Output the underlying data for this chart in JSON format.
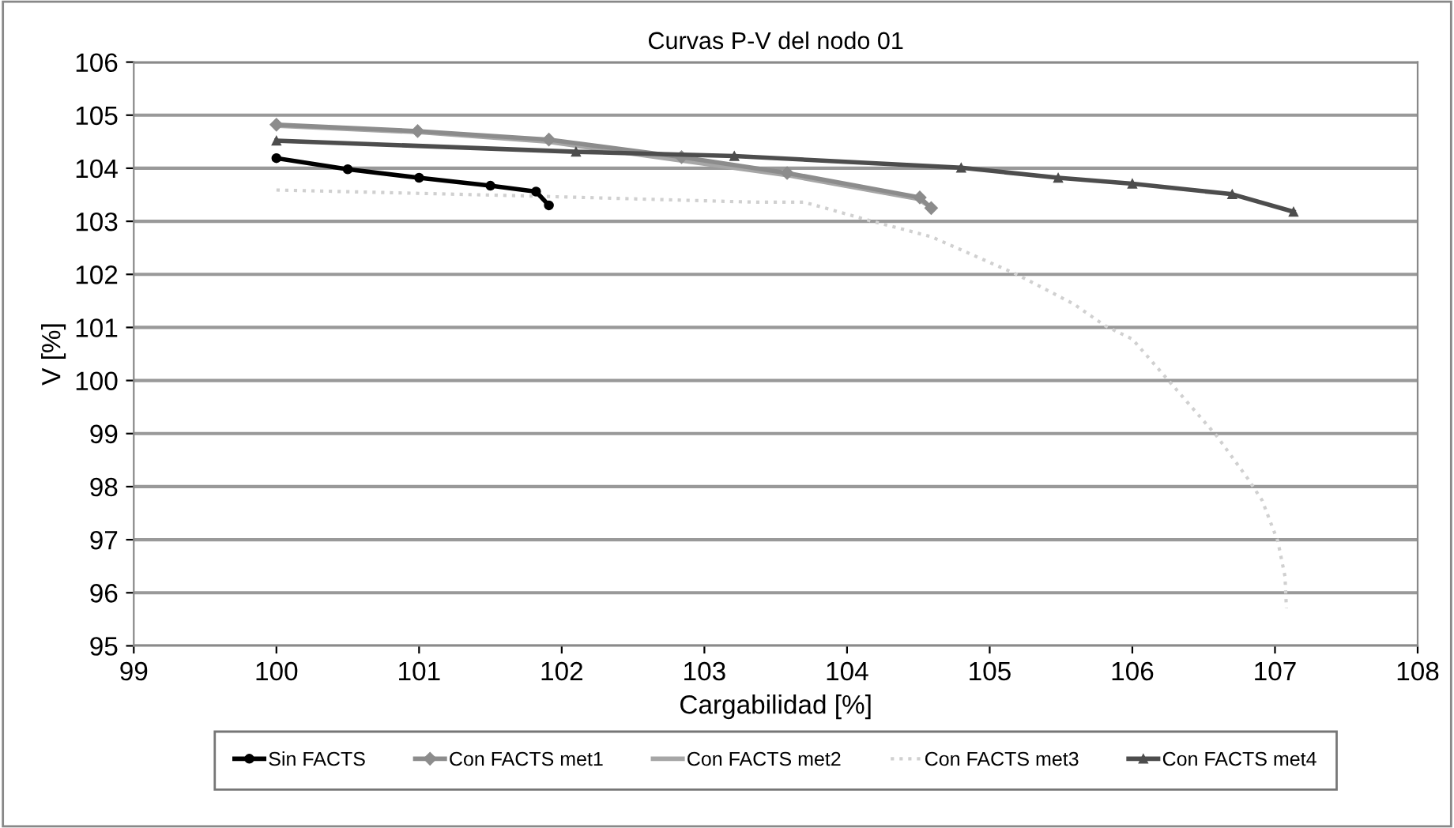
{
  "chart_data": {
    "type": "line",
    "title": "Curvas P-V del nodo 01",
    "xlabel": "Cargabilidad [%]",
    "ylabel": "V [%]",
    "xlim": [
      99,
      108
    ],
    "xticks": [
      99,
      100,
      101,
      102,
      103,
      104,
      105,
      106,
      107,
      108
    ],
    "ylim": [
      95,
      106
    ],
    "yticks": [
      95,
      96,
      97,
      98,
      99,
      100,
      101,
      102,
      103,
      104,
      105,
      106
    ],
    "grid": "y",
    "legend": "bottom",
    "series": [
      {
        "name": "Sin FACTS",
        "color": "#000000",
        "marker": "circle",
        "line_style": "solid",
        "x": [
          100,
          100.5,
          101,
          101.5,
          101.82,
          101.91
        ],
        "values": [
          104.19,
          103.98,
          103.82,
          103.67,
          103.56,
          103.3
        ]
      },
      {
        "name": "Con FACTS met1",
        "color": "#8c8c8c",
        "marker": "diamond",
        "line_style": "solid",
        "x": [
          100,
          100.99,
          101.91,
          102.84,
          103.58,
          104.51,
          104.59
        ],
        "values": [
          104.82,
          104.7,
          104.54,
          104.21,
          103.91,
          103.45,
          103.25
        ]
      },
      {
        "name": "Con FACTS met2",
        "color": "#a6a6a6",
        "marker": "none",
        "line_style": "solid",
        "x": [
          100,
          101,
          101.9,
          102.8,
          103.6,
          104.5,
          104.58
        ],
        "values": [
          104.8,
          104.68,
          104.5,
          104.16,
          103.86,
          103.42,
          103.28
        ]
      },
      {
        "name": "Con FACTS met3",
        "color": "#d0d0d0",
        "marker": "none",
        "line_style": "dotted",
        "x": [
          100,
          101.73,
          103.37,
          103.7,
          104.15,
          104.59,
          105.19,
          105.59,
          105.81,
          106.0,
          106.26,
          106.59,
          106.81,
          106.91,
          107.02,
          107.07,
          107.08
        ],
        "values": [
          103.59,
          103.48,
          103.36,
          103.36,
          103.02,
          102.71,
          102.0,
          101.44,
          101.03,
          100.78,
          99.98,
          98.96,
          98.15,
          97.74,
          96.97,
          96.31,
          95.71
        ]
      },
      {
        "name": "Con FACTS met4",
        "color": "#4d4d4d",
        "marker": "triangle",
        "line_style": "solid",
        "x": [
          100,
          102.1,
          103.21,
          104.8,
          105.48,
          106.0,
          106.7,
          107.13
        ],
        "values": [
          104.52,
          104.31,
          104.23,
          104.01,
          103.82,
          103.71,
          103.51,
          103.18
        ]
      }
    ]
  }
}
